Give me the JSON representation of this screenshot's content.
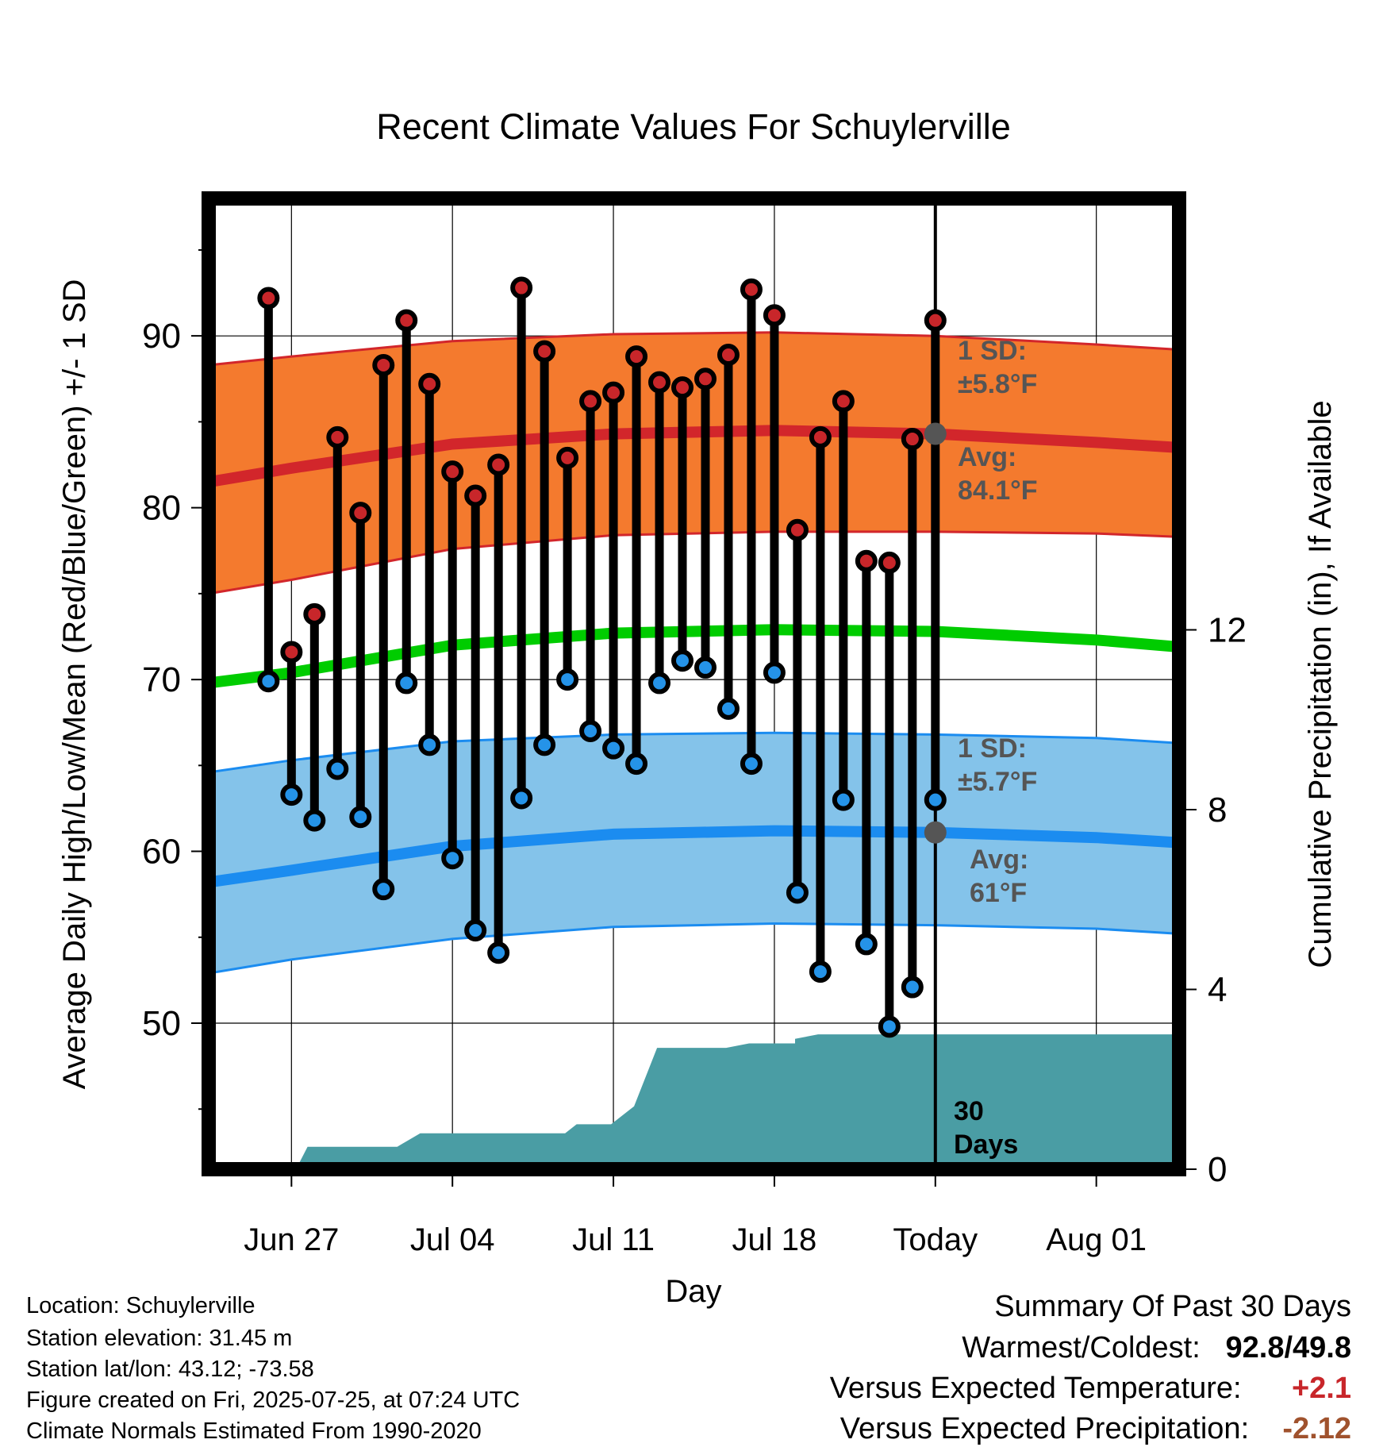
{
  "chart_data": {
    "type": "line",
    "title": "Recent Climate Values For Schuylerville",
    "xlabel": "Day",
    "ylabel": "Average Daily High/Low/Mean (Red/Blue/Green) +/- 1 SD",
    "y2label": "Cumulative Precipitation (in), If Available",
    "ylim": [
      41.5,
      98
    ],
    "y_ticks": [
      50,
      60,
      70,
      80,
      90
    ],
    "y2lim": [
      0,
      21.6
    ],
    "y2_ticks": [
      0,
      4,
      8,
      12
    ],
    "x_range_days": [
      -3.6,
      38.6
    ],
    "x_ticks": [
      {
        "day": 0,
        "label": "Jun 27"
      },
      {
        "day": 7,
        "label": "Jul 04"
      },
      {
        "day": 14,
        "label": "Jul 11"
      },
      {
        "day": 21,
        "label": "Jul 18"
      },
      {
        "day": 28,
        "label": "Today"
      },
      {
        "day": 35,
        "label": "Aug 01"
      }
    ],
    "grid": true,
    "today_day": 28,
    "series": [
      {
        "name": "High",
        "color": "#c8262a",
        "values": [
          92.2,
          71.6,
          73.8,
          84.1,
          79.7,
          88.3,
          90.9,
          87.2,
          82.1,
          80.7,
          82.5,
          92.8,
          89.1,
          82.9,
          86.2,
          86.7,
          88.8,
          87.3,
          87.0,
          87.5,
          88.9,
          92.7,
          91.2,
          78.7,
          84.1,
          86.2,
          76.9,
          76.8,
          84.0,
          90.9
        ]
      },
      {
        "name": "Low",
        "color": "#2593e8",
        "values": [
          69.9,
          63.3,
          61.8,
          64.8,
          62.0,
          57.8,
          69.8,
          66.2,
          59.6,
          55.4,
          54.1,
          63.1,
          66.2,
          70.0,
          67.0,
          66.0,
          65.1,
          69.8,
          71.1,
          70.7,
          68.3,
          65.1,
          70.4,
          57.6,
          53.0,
          63.0,
          54.6,
          49.8,
          52.1,
          63.0
        ]
      }
    ],
    "dates": [
      "Jun 26",
      "Jun 27",
      "Jun 28",
      "Jun 29",
      "Jun 30",
      "Jul 01",
      "Jul 02",
      "Jul 03",
      "Jul 04",
      "Jul 05",
      "Jul 06",
      "Jul 07",
      "Jul 08",
      "Jul 09",
      "Jul 10",
      "Jul 11",
      "Jul 12",
      "Jul 13",
      "Jul 14",
      "Jul 15",
      "Jul 16",
      "Jul 17",
      "Jul 18",
      "Jul 19",
      "Jul 20",
      "Jul 21",
      "Jul 22",
      "Jul 23",
      "Jul 24",
      "Jul 25"
    ],
    "normals": {
      "x": [
        -3.6,
        0,
        7,
        14,
        21,
        28,
        35,
        38.6
      ],
      "high_avg": [
        81.5,
        82.3,
        83.7,
        84.3,
        84.5,
        84.3,
        83.8,
        83.5
      ],
      "high_upper": [
        88.3,
        88.8,
        89.7,
        90.1,
        90.2,
        90.0,
        89.5,
        89.2
      ],
      "high_lower": [
        75.0,
        75.8,
        77.6,
        78.4,
        78.6,
        78.6,
        78.5,
        78.3
      ],
      "mean_avg": [
        69.8,
        70.4,
        72.0,
        72.7,
        72.9,
        72.8,
        72.3,
        71.9
      ],
      "low_avg": [
        58.2,
        58.9,
        60.3,
        61.0,
        61.2,
        61.1,
        60.8,
        60.5
      ],
      "low_upper": [
        64.6,
        65.3,
        66.4,
        66.8,
        66.9,
        66.8,
        66.6,
        66.3
      ],
      "low_lower": [
        52.9,
        53.7,
        54.9,
        55.6,
        55.8,
        55.7,
        55.5,
        55.2
      ]
    },
    "precip_cumulative": {
      "x": [
        -3.6,
        0.2,
        0.7,
        4.6,
        5.6,
        9.9,
        11.9,
        12.4,
        13.9,
        14.9,
        15.9,
        18.9,
        19.9,
        20.9,
        21.9,
        21.9,
        22.9,
        28.0,
        38.6
      ],
      "values": [
        0.0,
        0.0,
        0.5,
        0.5,
        0.8,
        0.8,
        0.8,
        1.0,
        1.0,
        1.4,
        2.7,
        2.7,
        2.8,
        2.8,
        2.8,
        2.9,
        3.0,
        3.0,
        3.0
      ]
    },
    "annotations": {
      "high_sd_label": "1 SD:",
      "high_sd_value": "±5.8°F",
      "high_avg_label": "Avg:",
      "high_avg_value": "84.1°F",
      "low_sd_label": "1 SD:",
      "low_sd_value": "±5.7°F",
      "low_avg_label": "Avg:",
      "low_avg_value": "61°F",
      "days_number": "30",
      "days_word": "Days"
    },
    "colors": {
      "high_band": "#f47a2e",
      "high_line": "#d2262b",
      "low_band": "#84c3ea",
      "low_line": "#1b8cf0",
      "mean_line": "#00cc00",
      "precip": "#4a9da4",
      "annotation_text": "#555555",
      "marker_gray": "#555555"
    }
  },
  "footer": {
    "location": "Location: Schuylerville",
    "elevation": "Station elevation: 31.45 m",
    "latlon": "Station lat/lon: 43.12; -73.58",
    "created": "Figure created on Fri, 2025-07-25, at 07:24 UTC",
    "normals": "Climate Normals Estimated From 1990-2020"
  },
  "summary": {
    "heading": "Summary Of Past 30 Days",
    "warm_cold_label": "Warmest/Coldest:",
    "warm_value": "92.8",
    "slash": "/",
    "cold_value": "49.8",
    "temp_label": "Versus Expected Temperature:",
    "temp_value": "+2.1",
    "temp_color": "#c8262a",
    "precip_label": "Versus Expected Precipitation:",
    "precip_value": "-2.12",
    "precip_color": "#a0522d"
  }
}
